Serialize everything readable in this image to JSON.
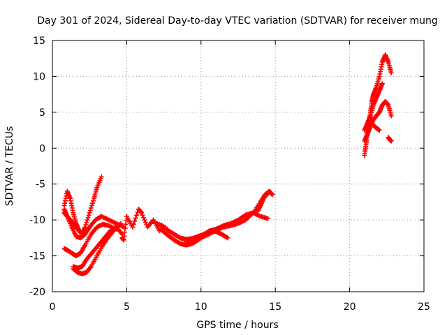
{
  "chart_data": {
    "type": "scatter",
    "title": "Day 301 of 2024, Sidereal Day-to-day VTEC variation (SDTVAR) for receiver mung",
    "xlabel": "GPS time / hours",
    "ylabel": "SDTVAR / TECUs",
    "xlim": [
      0,
      25
    ],
    "ylim": [
      -20,
      15
    ],
    "xticks": [
      "0",
      "5",
      "10",
      "15",
      "20",
      "25"
    ],
    "yticks": [
      "15",
      "10",
      "5",
      "0",
      "-5",
      "-10",
      "-15",
      "-20"
    ],
    "grid": true,
    "marker": "+",
    "color": "#ff0000",
    "series": [
      {
        "x": [
          0.8,
          1.0,
          1.2,
          1.4,
          1.6,
          1.8,
          2.0,
          2.2,
          2.5,
          2.8,
          3.0,
          3.3
        ],
        "y": [
          -8,
          -6,
          -7,
          -9,
          -10.5,
          -11.5,
          -12,
          -11,
          -9,
          -7,
          -5.5,
          -4
        ]
      },
      {
        "x": [
          0.8,
          1.0,
          1.3,
          1.6,
          1.9,
          2.2,
          2.5,
          2.9,
          3.3,
          3.8,
          4.3,
          4.8
        ],
        "y": [
          -8.5,
          -9.5,
          -11,
          -12.3,
          -12.5,
          -12,
          -11,
          -10,
          -9.5,
          -10,
          -10.5,
          -11
        ]
      },
      {
        "x": [
          0.8,
          1.0,
          1.3,
          1.6,
          1.9,
          2.2,
          2.6,
          3.0,
          3.4,
          3.8,
          4.3
        ],
        "y": [
          -14,
          -14.2,
          -14.6,
          -15.0,
          -14.6,
          -13.5,
          -12,
          -11,
          -10.6,
          -10.8,
          -11.3
        ]
      },
      {
        "x": [
          1.4,
          1.7,
          2.0,
          2.3,
          2.6,
          3.0,
          3.4,
          3.8,
          4.2,
          4.6
        ],
        "y": [
          -16.8,
          -17.3,
          -17.5,
          -17.3,
          -16.5,
          -15,
          -13.5,
          -12.3,
          -11.3,
          -10.5
        ]
      },
      {
        "x": [
          1.4,
          1.7,
          2.0,
          2.3,
          2.7,
          3.1,
          3.5,
          3.9,
          4.3,
          4.7
        ],
        "y": [
          -16.5,
          -16.7,
          -16.5,
          -15.5,
          -14.5,
          -13.5,
          -12.5,
          -11.5,
          -11,
          -12
        ]
      },
      {
        "x": [
          0.8,
          1.0,
          1.2,
          1.4,
          1.6,
          1.8
        ],
        "y": [
          -9,
          -9.5,
          -10,
          -10.5,
          -11,
          -11.5
        ]
      },
      {
        "x": [
          4.7,
          4.8,
          5.0,
          5.4,
          5.8,
          6.0,
          6.4,
          6.8,
          7.2,
          7.6
        ],
        "y": [
          -12.5,
          -12.8,
          -9.5,
          -11,
          -8.5,
          -9,
          -11,
          -10,
          -11.5,
          -11
        ]
      },
      {
        "x": [
          7.0,
          7.4,
          7.8,
          8.2,
          8.6,
          9.0,
          9.4,
          9.8,
          10.2,
          10.6,
          11.0,
          11.4,
          11.8
        ],
        "y": [
          -10.5,
          -10.8,
          -11.5,
          -12,
          -12.5,
          -12.7,
          -12.6,
          -12.3,
          -12,
          -11.5,
          -11.3,
          -11,
          -10.6
        ]
      },
      {
        "x": [
          7.4,
          7.8,
          8.2,
          8.6,
          9.0,
          9.4,
          9.8,
          10.2,
          10.6,
          11.0,
          11.4,
          11.8
        ],
        "y": [
          -11.5,
          -12.2,
          -12.8,
          -13.3,
          -13.5,
          -13.3,
          -12.8,
          -12,
          -11.5,
          -11.6,
          -12,
          -12.5
        ]
      },
      {
        "x": [
          9.0,
          9.5,
          10.0,
          10.5,
          11.0,
          11.5,
          12.0,
          12.5,
          13.0,
          13.5,
          14.0,
          14.5
        ],
        "y": [
          -13,
          -13.1,
          -12.5,
          -11.8,
          -11.3,
          -10.8,
          -10.5,
          -10,
          -9.3,
          -9,
          -9.5,
          -9.8
        ]
      },
      {
        "x": [
          10.0,
          10.5,
          11.0,
          11.5,
          12.0,
          12.5,
          13.0,
          13.5,
          14.0,
          14.3,
          14.6
        ],
        "y": [
          -12.5,
          -12,
          -11.5,
          -11,
          -10.8,
          -10.5,
          -10,
          -9,
          -7.5,
          -6.5,
          -6
        ]
      },
      {
        "x": [
          13.8,
          14.0,
          14.2,
          14.4,
          14.6,
          14.8
        ],
        "y": [
          -8.8,
          -8,
          -7,
          -6.5,
          -6,
          -6.5
        ]
      },
      {
        "x": [
          21.0,
          21.1,
          21.2,
          21.3,
          21.4,
          21.5,
          21.6,
          21.8,
          22.0,
          22.2,
          22.4,
          22.6,
          22.8
        ],
        "y": [
          -1,
          0.5,
          2,
          3.5,
          5,
          6.5,
          7.5,
          8.5,
          10,
          12,
          13,
          12,
          10.5
        ]
      },
      {
        "x": [
          21.0,
          21.2,
          21.4,
          21.6,
          21.8,
          22.0,
          22.2,
          22.4,
          22.6,
          22.8
        ],
        "y": [
          1,
          2,
          3,
          4,
          4.5,
          5,
          6,
          6.5,
          6,
          4.5
        ]
      },
      {
        "x": [
          21.0,
          21.2,
          21.4,
          21.6,
          21.8,
          22.0,
          22.2
        ],
        "y": [
          2.5,
          3.5,
          4.5,
          6,
          7,
          8,
          9
        ]
      },
      {
        "x": [
          21.4,
          21.6,
          21.8,
          22.0
        ],
        "y": [
          3.5,
          3.2,
          2.8,
          2.5
        ]
      },
      {
        "x": [
          22.6,
          22.7,
          22.8
        ],
        "y": [
          1.5,
          1.2,
          1
        ]
      }
    ]
  }
}
